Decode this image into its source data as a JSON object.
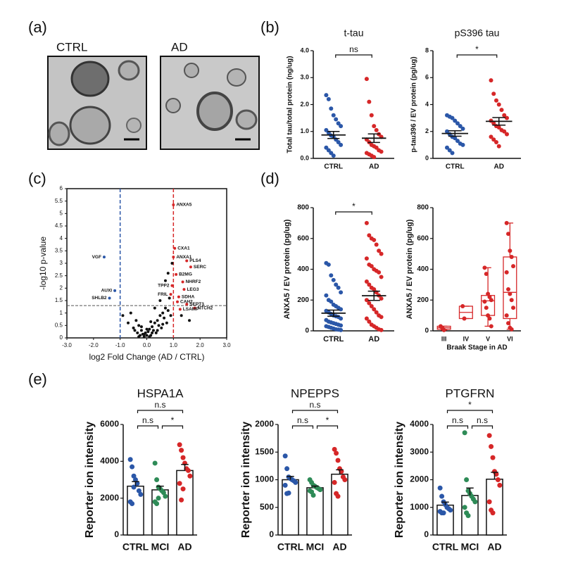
{
  "panels": [
    "(a)",
    "(b)",
    "(c)",
    "(d)",
    "(e)"
  ],
  "micrographs": [
    {
      "label": "CTRL"
    },
    {
      "label": "AD"
    }
  ],
  "chart_data": [
    {
      "type": "dot",
      "title": "t-tau",
      "ylabel": "Total tau/total protein (ng/ug)",
      "categories": [
        "CTRL",
        "AD"
      ],
      "groups": [
        {
          "color": "#2b57a8",
          "values": [
            2.35,
            2.2,
            1.85,
            1.6,
            1.45,
            1.3,
            1.2,
            1.05,
            0.95,
            0.85,
            0.8,
            0.7,
            0.6,
            0.5,
            0.4,
            0.3,
            0.2,
            0.1
          ],
          "mean": 0.87,
          "sem": 0.13
        },
        {
          "color": "#d62728",
          "values": [
            2.95,
            2.1,
            1.6,
            1.2,
            1.05,
            0.9,
            0.8,
            0.7,
            0.6,
            0.5,
            0.45,
            0.4,
            0.3,
            0.25,
            0.2,
            0.15,
            0.1,
            0.05
          ],
          "mean": 0.75,
          "sem": 0.16
        }
      ],
      "ylim": [
        0,
        4
      ],
      "yticks": [
        {
          "value": 0,
          "label": "0.0"
        },
        {
          "value": 1,
          "label": "1.0"
        },
        {
          "value": 2,
          "label": "2.0"
        },
        {
          "value": 3,
          "label": "3.0"
        },
        {
          "value": 4,
          "label": "4.0"
        }
      ],
      "comparisons": [
        {
          "groups": [
            "CTRL",
            "AD"
          ],
          "label": "ns"
        }
      ]
    },
    {
      "type": "dot",
      "title": "pS396 tau",
      "ylabel": "p-tau396 / EV protein (pg/ug)",
      "categories": [
        "CTRL",
        "AD"
      ],
      "groups": [
        {
          "color": "#2b57a8",
          "values": [
            3.2,
            3.1,
            3.0,
            2.8,
            2.6,
            2.4,
            2.2,
            2.0,
            1.8,
            1.6,
            1.5,
            1.3,
            1.1,
            1.0,
            0.8,
            0.6,
            0.4
          ],
          "mean": 1.85,
          "sem": 0.2
        },
        {
          "color": "#d62728",
          "values": [
            5.8,
            4.8,
            4.3,
            4.0,
            3.6,
            3.2,
            3.0,
            2.8,
            2.6,
            2.4,
            2.3,
            2.1,
            2.0,
            1.8,
            1.6,
            1.4,
            1.2,
            0.9
          ],
          "mean": 2.75,
          "sem": 0.28
        }
      ],
      "ylim": [
        0,
        8
      ],
      "yticks": [
        0,
        2,
        4,
        6,
        8
      ],
      "comparisons": [
        {
          "groups": [
            "CTRL",
            "AD"
          ],
          "label": "*"
        }
      ]
    },
    {
      "type": "scatter",
      "xlabel": "log2 Fold Change (AD / CTRL)",
      "ylabel": "-log10 p-value",
      "xlim": [
        -3,
        3
      ],
      "ylim": [
        0,
        6
      ],
      "xticks": [
        {
          "value": -3,
          "label": "-3.0"
        },
        {
          "value": -2,
          "label": "-2.0"
        },
        {
          "value": -1,
          "label": "-1.0"
        },
        {
          "value": 0,
          "label": "0.0"
        },
        {
          "value": 1,
          "label": "1.0"
        },
        {
          "value": 2,
          "label": "2.0"
        },
        {
          "value": 3,
          "label": "3.0"
        }
      ],
      "yticks": [
        0,
        0.5,
        1,
        1.5,
        2,
        2.5,
        3,
        3.5,
        4,
        4.5,
        5,
        5.5,
        6
      ],
      "reference_lines": {
        "x": [
          {
            "value": -1,
            "color": "#2b57a8"
          },
          {
            "value": 1,
            "color": "#d62728"
          }
        ],
        "y": [
          {
            "value": 1.3,
            "color": "#555555"
          }
        ]
      },
      "series": [
        {
          "color": "#111111",
          "x": [
            -0.9,
            -0.7,
            -0.6,
            -0.5,
            -0.45,
            -0.4,
            -0.35,
            -0.3,
            -0.25,
            -0.2,
            -0.15,
            -0.1,
            -0.05,
            0,
            0.05,
            0.1,
            0.15,
            0.2,
            0.25,
            0.3,
            0.35,
            0.4,
            0.45,
            0.5,
            0.55,
            0.6,
            0.65,
            0.7,
            0.75,
            0.8,
            0.85,
            0.9,
            -0.3,
            -0.1,
            0.1,
            0.2,
            0.4,
            0.6,
            0.7,
            0.5,
            0.3,
            -0.2,
            0,
            0.15,
            0.8,
            0.95,
            1.3,
            1.6
          ],
          "values": [
            0.9,
            0.6,
            1.0,
            0.4,
            0.3,
            0.7,
            0.2,
            0.5,
            0.1,
            0.3,
            0.15,
            0.05,
            0.2,
            0.1,
            0.25,
            0.35,
            0.1,
            0.45,
            0.3,
            0.6,
            0.2,
            0.7,
            0.5,
            0.9,
            0.4,
            1.0,
            0.8,
            1.2,
            0.6,
            1.1,
            1.6,
            0.9,
            0.05,
            0.15,
            0.05,
            0.2,
            0.3,
            0.55,
            2.3,
            1.5,
            1.2,
            0.45,
            0.35,
            0.65,
            2.6,
            3.0,
            0.9,
            0.7
          ]
        },
        {
          "color": "#d62728",
          "x": [
            1.0,
            1.05,
            1.0,
            1.5,
            1.65,
            1.1,
            1.35,
            0.95,
            1.4,
            0.9,
            1.2,
            1.15,
            1.5,
            1.8,
            1.25
          ],
          "values": [
            5.35,
            3.6,
            3.25,
            3.1,
            2.85,
            2.55,
            2.25,
            2.1,
            1.95,
            1.75,
            1.65,
            1.45,
            1.35,
            1.2,
            1.15
          ],
          "labels": [
            "ANXA5",
            "CXA1",
            "ANXA1",
            "PLS4",
            "SERC",
            "B2MG",
            "NHRF2",
            "TPP2",
            "LEG3",
            "FRIL",
            "SDHA",
            "CAH2",
            "SEPT3",
            "NTCH2",
            "LSAMP"
          ]
        },
        {
          "color": "#2b57a8",
          "x": [
            -1.6,
            -1.2,
            -1.4
          ],
          "values": [
            3.25,
            1.9,
            1.6
          ],
          "labels": [
            "VGF",
            "AUXI",
            "SHLB2"
          ]
        }
      ]
    },
    {
      "type": "dot",
      "ylabel": "ANXA5 / EV protein (pg/ug)",
      "categories": [
        "CTRL",
        "AD"
      ],
      "groups": [
        {
          "color": "#2b57a8",
          "values": [
            440,
            430,
            360,
            330,
            300,
            280,
            250,
            230,
            200,
            190,
            170,
            160,
            150,
            140,
            130,
            120,
            110,
            100,
            95,
            90,
            80,
            70,
            60,
            55,
            50,
            45,
            40,
            35,
            30,
            25,
            20,
            15,
            10,
            8,
            5
          ],
          "mean": 115,
          "sem": 20
        },
        {
          "color": "#d62728",
          "values": [
            700,
            620,
            600,
            590,
            560,
            520,
            500,
            470,
            430,
            420,
            400,
            390,
            380,
            350,
            320,
            300,
            280,
            270,
            250,
            230,
            210,
            200,
            180,
            160,
            140,
            120,
            100,
            90,
            80,
            60,
            40,
            30,
            20,
            10,
            5
          ],
          "mean": 228,
          "sem": 30
        }
      ],
      "ylim": [
        0,
        800
      ],
      "yticks": [
        0,
        200,
        400,
        600,
        800
      ],
      "comparisons": [
        {
          "groups": [
            "CTRL",
            "AD"
          ],
          "label": "*"
        }
      ]
    },
    {
      "type": "box",
      "ylabel": "ANXA5 / EV protein (pg/ug)",
      "xlabel": "Braak Stage in AD",
      "color": "#d62728",
      "categories": [
        "III",
        "IV",
        "V",
        "VI"
      ],
      "points": [
        [
          30,
          20,
          5
        ],
        [
          160,
          80
        ],
        [
          410,
          370,
          240,
          220,
          200,
          190,
          150,
          100,
          80,
          30
        ],
        [
          700,
          630,
          520,
          480,
          420,
          380,
          270,
          240,
          200,
          150,
          100,
          50,
          20,
          10
        ]
      ],
      "boxes": [
        {
          "min": 5,
          "q1": 10,
          "median": 20,
          "q3": 30,
          "max": 30
        },
        {
          "min": 80,
          "q1": 80,
          "median": 120,
          "q3": 160,
          "max": 160
        },
        {
          "min": 30,
          "q1": 100,
          "median": 195,
          "q3": 230,
          "max": 410
        },
        {
          "min": 10,
          "q1": 80,
          "median": 250,
          "q3": 480,
          "max": 700
        }
      ],
      "ylim": [
        0,
        800
      ],
      "yticks": [
        0,
        200,
        400,
        600,
        800
      ]
    },
    {
      "type": "bar",
      "title": "HSPA1A",
      "ylabel": "Reporter ion intensity",
      "categories": [
        "CTRL",
        "MCI",
        "AD"
      ],
      "groups": [
        {
          "color": "#2b57a8",
          "values": [
            4100,
            3700,
            3200,
            3000,
            2800,
            2400,
            2200,
            1800,
            1700,
            2600
          ],
          "mean": 2650,
          "sem": 250
        },
        {
          "color": "#2e8b57",
          "values": [
            3900,
            3000,
            2600,
            2500,
            2400,
            2300,
            2100,
            1800,
            1700,
            2000
          ],
          "mean": 2450,
          "sem": 200
        },
        {
          "color": "#d62728",
          "values": [
            4900,
            4600,
            4200,
            3900,
            3600,
            3500,
            3200,
            2800,
            1900,
            2500
          ],
          "mean": 3500,
          "sem": 330
        }
      ],
      "ylim": [
        0,
        6000
      ],
      "yticks": [
        0,
        2000,
        4000,
        6000
      ],
      "comparisons": [
        {
          "groups": [
            "CTRL",
            "MCI"
          ],
          "label": "n.s"
        },
        {
          "groups": [
            "MCI",
            "AD"
          ],
          "label": "*"
        },
        {
          "groups": [
            "CTRL",
            "AD"
          ],
          "label": "n.s"
        }
      ]
    },
    {
      "type": "bar",
      "title": "NPEPPS",
      "ylabel": "Reporter ion intensity",
      "categories": [
        "CTRL",
        "MCI",
        "AD"
      ],
      "groups": [
        {
          "color": "#2b57a8",
          "values": [
            1430,
            1200,
            1050,
            1020,
            1000,
            980,
            950,
            900,
            750,
            760
          ],
          "mean": 1000,
          "sem": 60
        },
        {
          "color": "#2e8b57",
          "values": [
            1000,
            950,
            900,
            880,
            860,
            840,
            820,
            800,
            780,
            720
          ],
          "mean": 855,
          "sem": 30
        },
        {
          "color": "#d62728",
          "values": [
            1550,
            1480,
            1350,
            1200,
            1150,
            1050,
            1000,
            950,
            750,
            700
          ],
          "mean": 1100,
          "sem": 80
        }
      ],
      "ylim": [
        0,
        2000
      ],
      "yticks": [
        0,
        500,
        1000,
        1500,
        2000
      ],
      "comparisons": [
        {
          "groups": [
            "CTRL",
            "MCI"
          ],
          "label": "n.s"
        },
        {
          "groups": [
            "MCI",
            "AD"
          ],
          "label": "*"
        },
        {
          "groups": [
            "CTRL",
            "AD"
          ],
          "label": "n.s"
        }
      ]
    },
    {
      "type": "bar",
      "title": "PTGFRN",
      "ylabel": "Reporter ion intensity",
      "categories": [
        "CTRL",
        "MCI",
        "AD"
      ],
      "groups": [
        {
          "color": "#2b57a8",
          "values": [
            1700,
            1400,
            1200,
            1100,
            1000,
            950,
            900,
            850,
            800,
            800
          ],
          "mean": 1080,
          "sem": 110
        },
        {
          "color": "#2e8b57",
          "values": [
            3700,
            2000,
            1600,
            1500,
            1400,
            1300,
            1200,
            1000,
            800,
            700
          ],
          "mean": 1430,
          "sem": 270
        },
        {
          "color": "#d62728",
          "values": [
            3600,
            3200,
            2800,
            2300,
            2200,
            2000,
            1800,
            1200,
            900,
            800
          ],
          "mean": 2020,
          "sem": 250
        }
      ],
      "ylim": [
        0,
        4000
      ],
      "yticks": [
        0,
        1000,
        2000,
        3000,
        4000
      ],
      "comparisons": [
        {
          "groups": [
            "CTRL",
            "MCI"
          ],
          "label": "n.s"
        },
        {
          "groups": [
            "MCI",
            "AD"
          ],
          "label": "n.s"
        },
        {
          "groups": [
            "CTRL",
            "AD"
          ],
          "label": "*"
        }
      ]
    }
  ]
}
